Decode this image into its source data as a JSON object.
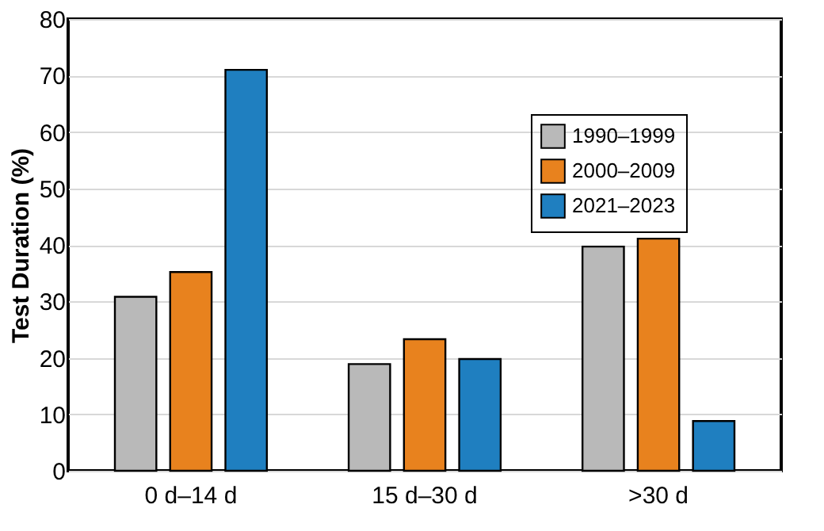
{
  "chart_data": {
    "type": "bar",
    "ylabel": "Test Duration (%)",
    "categories": [
      "0 d–14 d",
      "15 d–30 d",
      ">30 d"
    ],
    "series": [
      {
        "name": "1990–1999",
        "color": "#b9b9b9",
        "values": [
          30.8,
          18.9,
          39.7
        ]
      },
      {
        "name": "2000–2009",
        "color": "#e8821e",
        "values": [
          35.2,
          23.3,
          41.1
        ]
      },
      {
        "name": "2021–2023",
        "color": "#1f7fc0",
        "values": [
          71.0,
          19.8,
          8.8
        ]
      }
    ],
    "ylim": [
      0,
      80
    ],
    "yticks": [
      0,
      10,
      20,
      30,
      40,
      50,
      60,
      70,
      80
    ],
    "grid": "y",
    "legend": "top right"
  }
}
